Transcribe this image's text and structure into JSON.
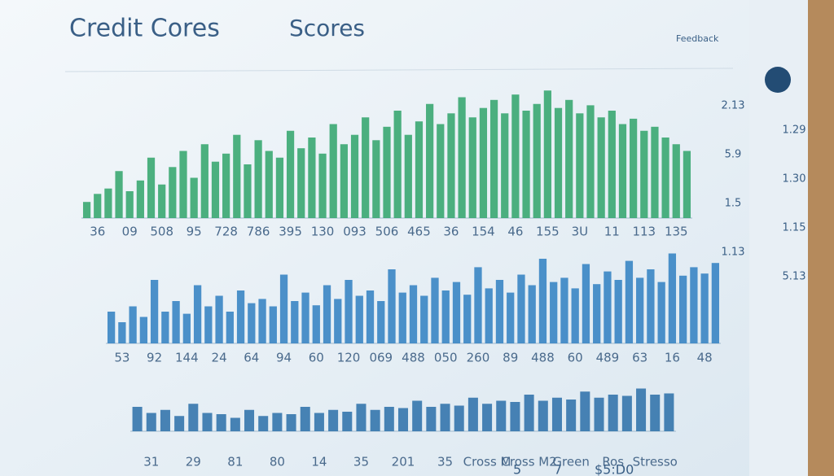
{
  "header": {
    "title": "Credit Cores",
    "subtitle": "Scores",
    "corner": "Feedback"
  },
  "side_labels": [
    "2.13",
    "1.29",
    "5.9",
    "1.30",
    "1.5",
    "1.15",
    "1.13",
    "5.13"
  ],
  "footer_labels": [
    "5",
    "7",
    "$5:D0"
  ],
  "chart_data": [
    {
      "type": "bar",
      "color": "#2fa36a",
      "ylim": [
        0,
        100
      ],
      "categories": [
        null,
        "36",
        null,
        null,
        "09",
        null,
        null,
        "508",
        null,
        null,
        "95",
        null,
        null,
        "728",
        null,
        null,
        "786",
        null,
        null,
        "395",
        null,
        null,
        "130",
        null,
        null,
        "093",
        null,
        null,
        "506",
        null,
        null,
        "465",
        null,
        null,
        "36",
        null,
        null,
        "154",
        null,
        null,
        "46",
        null,
        null,
        "155",
        null,
        null,
        "3U",
        null,
        null,
        "11",
        null,
        null,
        "113",
        null,
        null,
        "135",
        null
      ],
      "values": [
        12,
        18,
        22,
        35,
        20,
        28,
        45,
        25,
        38,
        50,
        30,
        55,
        42,
        48,
        62,
        40,
        58,
        50,
        45,
        65,
        52,
        60,
        48,
        70,
        55,
        62,
        75,
        58,
        68,
        80,
        62,
        72,
        85,
        70,
        78,
        90,
        75,
        82,
        88,
        78,
        92,
        80,
        85,
        95,
        82,
        88,
        78,
        84,
        75,
        80,
        70,
        74,
        65,
        68,
        60,
        55,
        50
      ]
    },
    {
      "type": "bar",
      "color": "#2f7fc1",
      "ylim": [
        0,
        100
      ],
      "categories": [
        null,
        "53",
        null,
        null,
        "92",
        null,
        null,
        "144",
        null,
        null,
        "24",
        null,
        null,
        "64",
        null,
        null,
        "94",
        null,
        null,
        "60",
        null,
        null,
        "120",
        null,
        null,
        "069",
        null,
        null,
        "488",
        null,
        null,
        "050",
        null,
        null,
        "260",
        null,
        null,
        "89",
        null,
        null,
        "488",
        null,
        null,
        "60",
        null,
        null,
        "489",
        null,
        null,
        "63",
        null,
        null,
        "16",
        null,
        null,
        "48",
        null
      ],
      "values": [
        30,
        20,
        35,
        25,
        60,
        30,
        40,
        28,
        55,
        35,
        45,
        30,
        50,
        38,
        42,
        35,
        65,
        40,
        48,
        36,
        55,
        42,
        60,
        45,
        50,
        40,
        70,
        48,
        55,
        45,
        62,
        50,
        58,
        46,
        72,
        52,
        60,
        48,
        65,
        55,
        80,
        58,
        62,
        52,
        75,
        56,
        68,
        60,
        78,
        62,
        70,
        58,
        85,
        64,
        72,
        66,
        76
      ]
    },
    {
      "type": "bar",
      "color": "#2a6fa8",
      "ylim": [
        0,
        100
      ],
      "categories": [
        null,
        "31",
        null,
        null,
        "29",
        null,
        null,
        "81",
        null,
        null,
        "80",
        null,
        null,
        "14",
        null,
        null,
        "35",
        null,
        null,
        "201",
        null,
        null,
        "35",
        null,
        null,
        "Cross M",
        null,
        null,
        "Cross M2",
        null,
        null,
        "Green",
        null,
        null,
        "Ros",
        null,
        null,
        "Stresso",
        null
      ],
      "values": [
        40,
        30,
        35,
        25,
        45,
        30,
        28,
        22,
        35,
        25,
        30,
        28,
        40,
        30,
        35,
        32,
        45,
        35,
        40,
        38,
        50,
        40,
        45,
        42,
        55,
        45,
        50,
        48,
        60,
        50,
        55,
        52,
        65,
        55,
        60,
        58,
        70,
        60,
        62
      ]
    }
  ]
}
